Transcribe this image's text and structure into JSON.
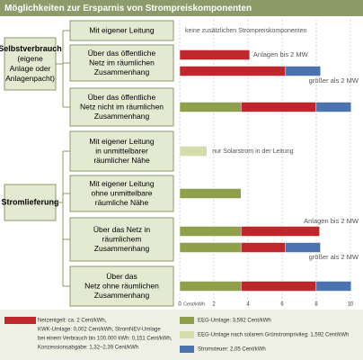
{
  "chart_data": {
    "type": "bar",
    "title": "Möglichkeiten zur Ersparnis von Strompreiskomponenten",
    "xlim": [
      0,
      10
    ],
    "xticks": [
      0,
      2,
      4,
      6,
      8,
      10
    ],
    "x_unit": "Cent/kWh",
    "grid": true,
    "series": [
      {
        "color": "#c0272d",
        "name": [
          "Netzentgelt: ca. 2 Cent/kWh,",
          "KWK-Umlage: 0,002 Cent/kWh, StromNEV-Umlage",
          "bei einem Verbrauch bis 100.000 kWh: 0,151 Cent/kWh,",
          "Konzessionsabgabe: 1,32–2,39 Cent/kWh"
        ]
      },
      {
        "color": "#8fa04a",
        "name": [
          "EEG-Umlage: 3,592 Cent/kWh"
        ]
      },
      {
        "color": "#d3dcab",
        "name": [
          "EEG-Umlage nach solarem Grünstromprivileg: 1,592 Cent/kWh"
        ]
      },
      {
        "color": "#4a73b0",
        "name": [
          "Stromsteuer: 2,05 Cent/kWh"
        ]
      }
    ],
    "groups": [
      {
        "label": [
          "Selbstverbrauch",
          "(eigene",
          "Anlage oder",
          "Anlagenpacht)"
        ],
        "rows": [
          0,
          2
        ]
      },
      {
        "label": [
          "Stromlieferung"
        ],
        "rows": [
          3,
          6
        ]
      }
    ],
    "rows": [
      {
        "label": [
          "Mit eigener Leitung"
        ],
        "note": "keine zusätzlichen Strompreiskomponenten",
        "bars": []
      },
      {
        "label": [
          "Über das öffentliche",
          "Netz im räumlichen",
          "Zusammenhang"
        ],
        "bars": [
          {
            "label": "Anlagen bis 2 MW",
            "segments": [
              {
                "series": 0,
                "value": 4.1
              }
            ]
          },
          {
            "label": "größer als 2 MW",
            "segments": [
              {
                "series": 0,
                "value": 6.2
              },
              {
                "series": 3,
                "value": 2.05
              }
            ]
          }
        ]
      },
      {
        "label": [
          "Über das öffentliche",
          "Netz nicht im räumlichen",
          "Zusammenhang"
        ],
        "bars": [
          {
            "segments": [
              {
                "series": 1,
                "value": 3.592
              },
              {
                "series": 0,
                "value": 4.4
              },
              {
                "series": 3,
                "value": 2.05
              }
            ]
          }
        ]
      },
      {
        "label": [
          "Mit eigener Leitung",
          "in unmittelbarer",
          "räumlicher Nähe"
        ],
        "note": "nur Solarstrom in der Leitung",
        "bars": [
          {
            "segments": [
              {
                "series": 2,
                "value": 1.592
              }
            ]
          }
        ]
      },
      {
        "label": [
          "Mit eigener Leitung",
          "ohne unmittelbare",
          "räumliche Nähe"
        ],
        "bars": [
          {
            "segments": [
              {
                "series": 1,
                "value": 3.592
              }
            ]
          }
        ]
      },
      {
        "label": [
          "Über das Netz in",
          "räumlichem",
          "Zusammenhang"
        ],
        "bars": [
          {
            "label": "Anlagen bis 2 MW",
            "segments": [
              {
                "series": 1,
                "value": 3.592
              },
              {
                "series": 0,
                "value": 4.6
              }
            ]
          },
          {
            "label": "größer als 2 MW",
            "segments": [
              {
                "series": 1,
                "value": 3.592
              },
              {
                "series": 0,
                "value": 2.6
              },
              {
                "series": 3,
                "value": 2.05
              }
            ]
          }
        ]
      },
      {
        "label": [
          "Über das",
          "Netz ohne räumlichen",
          "Zusammenhang"
        ],
        "bars": [
          {
            "segments": [
              {
                "series": 1,
                "value": 3.592
              },
              {
                "series": 0,
                "value": 4.4
              },
              {
                "series": 3,
                "value": 2.05
              }
            ]
          }
        ]
      }
    ]
  }
}
